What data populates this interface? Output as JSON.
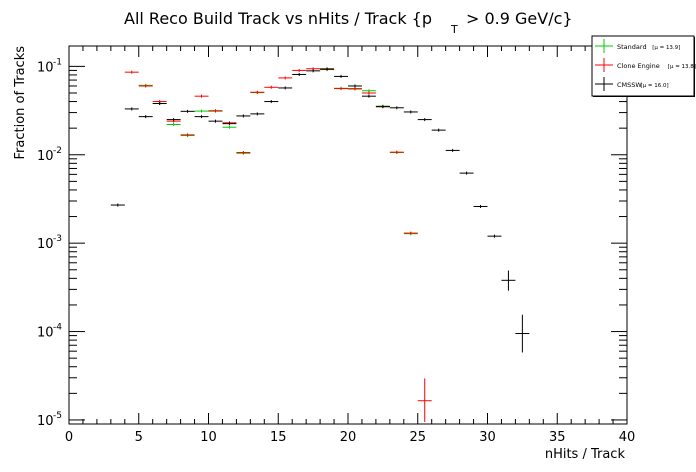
{
  "chart_data": {
    "type": "scatter",
    "title_main": "All Reco Build Track vs nHits / Track {p",
    "title_sub": "T",
    "title_tail": " > 0.9 GeV/c}",
    "xlabel": "nHits / Track",
    "ylabel": "Fraction of Tracks",
    "xlim": [
      0,
      40
    ],
    "ylim": [
      9e-06,
      0.17
    ],
    "yscale": "log",
    "x_ticks": [
      0,
      5,
      10,
      15,
      20,
      25,
      30,
      35,
      40
    ],
    "x_tick_labels": [
      "0",
      "5",
      "10",
      "15",
      "20",
      "25",
      "30",
      "35",
      "40"
    ],
    "y_ticks": [
      1e-05,
      0.0001,
      0.001,
      0.01,
      0.1
    ],
    "y_tick_base": "10",
    "y_tick_exponents": [
      "-5",
      "-4",
      "-3",
      "-2",
      "-1"
    ],
    "grid": false,
    "legend_position": "top-right",
    "series": [
      {
        "name": "Standard",
        "stat": "[μ = 13.9]",
        "color": "#00cc00",
        "points": [
          {
            "x": 5,
            "y": 0.061
          },
          {
            "x": 6,
            "y": 0.038
          },
          {
            "x": 7,
            "y": 0.022
          },
          {
            "x": 8,
            "y": 0.0165
          },
          {
            "x": 9,
            "y": 0.0312
          },
          {
            "x": 10,
            "y": 0.0311
          },
          {
            "x": 11,
            "y": 0.0205
          },
          {
            "x": 12,
            "y": 0.0104
          },
          {
            "x": 13,
            "y": 0.0505
          },
          {
            "x": 18,
            "y": 0.092
          },
          {
            "x": 19,
            "y": 0.0565
          },
          {
            "x": 20,
            "y": 0.0562
          },
          {
            "x": 21,
            "y": 0.053
          },
          {
            "x": 22,
            "y": 0.0355
          },
          {
            "x": 23,
            "y": 0.0106
          },
          {
            "x": 24,
            "y": 0.00128
          }
        ]
      },
      {
        "name": "Clone Engine",
        "stat": "[μ = 13.8]",
        "color": "#ff0000",
        "points": [
          {
            "x": 4,
            "y": 0.086
          },
          {
            "x": 5,
            "y": 0.06
          },
          {
            "x": 6,
            "y": 0.04
          },
          {
            "x": 7,
            "y": 0.024
          },
          {
            "x": 8,
            "y": 0.0168
          },
          {
            "x": 9,
            "y": 0.046
          },
          {
            "x": 10,
            "y": 0.0315
          },
          {
            "x": 11,
            "y": 0.023
          },
          {
            "x": 12,
            "y": 0.0106
          },
          {
            "x": 13,
            "y": 0.051
          },
          {
            "x": 14,
            "y": 0.058
          },
          {
            "x": 15,
            "y": 0.074
          },
          {
            "x": 16,
            "y": 0.09
          },
          {
            "x": 17,
            "y": 0.094
          },
          {
            "x": 18,
            "y": 0.094
          },
          {
            "x": 19,
            "y": 0.056
          },
          {
            "x": 20,
            "y": 0.0555
          },
          {
            "x": 21,
            "y": 0.05
          },
          {
            "x": 22,
            "y": 0.035
          },
          {
            "x": 23,
            "y": 0.0107
          },
          {
            "x": 24,
            "y": 0.0013
          },
          {
            "x": 25,
            "y": 1.65e-05,
            "err_lo": 7e-06,
            "err_hi": 1.3e-05
          }
        ]
      },
      {
        "name": "CMSSW",
        "stat": "[μ = 16.0]",
        "color": "#000000",
        "points": [
          {
            "x": 3,
            "y": 0.0027
          },
          {
            "x": 4,
            "y": 0.033
          },
          {
            "x": 5,
            "y": 0.027
          },
          {
            "x": 6,
            "y": 0.038
          },
          {
            "x": 7,
            "y": 0.025
          },
          {
            "x": 8,
            "y": 0.031
          },
          {
            "x": 9,
            "y": 0.027
          },
          {
            "x": 10,
            "y": 0.024
          },
          {
            "x": 11,
            "y": 0.0225
          },
          {
            "x": 12,
            "y": 0.0275
          },
          {
            "x": 13,
            "y": 0.029
          },
          {
            "x": 14,
            "y": 0.04
          },
          {
            "x": 15,
            "y": 0.057
          },
          {
            "x": 16,
            "y": 0.081
          },
          {
            "x": 17,
            "y": 0.089
          },
          {
            "x": 18,
            "y": 0.093
          },
          {
            "x": 19,
            "y": 0.077
          },
          {
            "x": 20,
            "y": 0.06
          },
          {
            "x": 21,
            "y": 0.046
          },
          {
            "x": 22,
            "y": 0.035
          },
          {
            "x": 23,
            "y": 0.034
          },
          {
            "x": 24,
            "y": 0.0305
          },
          {
            "x": 25,
            "y": 0.025
          },
          {
            "x": 26,
            "y": 0.019
          },
          {
            "x": 27,
            "y": 0.0112
          },
          {
            "x": 28,
            "y": 0.0062
          },
          {
            "x": 29,
            "y": 0.0026
          },
          {
            "x": 30,
            "y": 0.0012
          },
          {
            "x": 31,
            "y": 0.00038,
            "err_lo": 9e-05,
            "err_hi": 0.00011
          },
          {
            "x": 32,
            "y": 9.5e-05,
            "err_lo": 3.7e-05,
            "err_hi": 6e-05
          }
        ]
      }
    ]
  }
}
